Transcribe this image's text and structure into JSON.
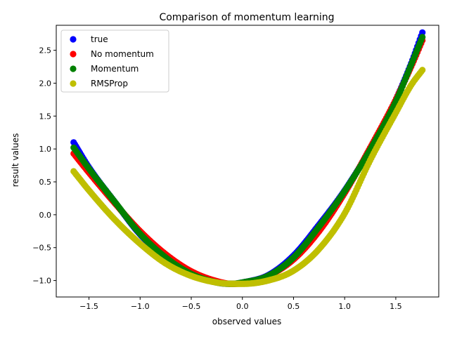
{
  "chart_data": {
    "type": "scatter",
    "title": "Comparison of momentum learning",
    "xlabel": "observed values",
    "ylabel": "result values",
    "xlim": [
      -1.82,
      1.92
    ],
    "ylim": [
      -1.25,
      2.88
    ],
    "xticks": [
      -1.5,
      -1.0,
      -0.5,
      0.0,
      0.5,
      1.0,
      1.5
    ],
    "xtick_labels": [
      "−1.5",
      "−1.0",
      "−0.5",
      "0.0",
      "0.5",
      "1.0",
      "1.5"
    ],
    "yticks": [
      -1.0,
      -0.5,
      0.0,
      0.5,
      1.0,
      1.5,
      2.0,
      2.5
    ],
    "ytick_labels": [
      "−1.0",
      "−0.5",
      "0.0",
      "0.5",
      "1.0",
      "1.5",
      "2.0",
      "2.5"
    ],
    "grid": false,
    "legend_position": "top-left",
    "x_range": [
      -1.65,
      1.76
    ],
    "series": [
      {
        "name": "true",
        "color": "#0000ff",
        "marker": "circle",
        "x": [
          -1.65,
          -1.5,
          -1.25,
          -1.0,
          -0.75,
          -0.5,
          -0.25,
          -0.1,
          0.0,
          0.25,
          0.5,
          0.75,
          1.0,
          1.25,
          1.5,
          1.65,
          1.76
        ],
        "y": [
          1.1,
          0.72,
          0.2,
          -0.3,
          -0.65,
          -0.9,
          -1.03,
          -1.05,
          -1.03,
          -0.92,
          -0.62,
          -0.15,
          0.37,
          1.0,
          1.75,
          2.3,
          2.77
        ]
      },
      {
        "name": "No momentum",
        "color": "#ff0000",
        "marker": "circle",
        "x": [
          -1.65,
          -1.5,
          -1.25,
          -1.0,
          -0.75,
          -0.5,
          -0.25,
          -0.1,
          0.0,
          0.25,
          0.5,
          0.75,
          1.0,
          1.25,
          1.5,
          1.65,
          1.76
        ],
        "y": [
          0.93,
          0.64,
          0.18,
          -0.25,
          -0.6,
          -0.86,
          -1.01,
          -1.05,
          -1.04,
          -0.93,
          -0.68,
          -0.25,
          0.33,
          1.02,
          1.75,
          2.25,
          2.65
        ]
      },
      {
        "name": "Momentum",
        "color": "#008000",
        "marker": "circle",
        "x": [
          -1.65,
          -1.5,
          -1.25,
          -1.0,
          -0.75,
          -0.5,
          -0.25,
          -0.1,
          0.0,
          0.25,
          0.5,
          0.75,
          1.0,
          1.25,
          1.5,
          1.65,
          1.76
        ],
        "y": [
          1.02,
          0.7,
          0.2,
          -0.29,
          -0.65,
          -0.9,
          -1.03,
          -1.05,
          -1.03,
          -0.93,
          -0.65,
          -0.18,
          0.36,
          0.99,
          1.72,
          2.28,
          2.7
        ]
      },
      {
        "name": "RMSProp",
        "color": "#bfbf00",
        "marker": "circle",
        "x": [
          -1.65,
          -1.5,
          -1.25,
          -1.0,
          -0.75,
          -0.5,
          -0.25,
          -0.1,
          0.0,
          0.25,
          0.5,
          0.75,
          1.0,
          1.25,
          1.5,
          1.65,
          1.76
        ],
        "y": [
          0.66,
          0.37,
          -0.07,
          -0.44,
          -0.74,
          -0.93,
          -1.03,
          -1.05,
          -1.05,
          -1.0,
          -0.85,
          -0.52,
          0.02,
          0.83,
          1.55,
          1.97,
          2.2
        ]
      }
    ]
  }
}
